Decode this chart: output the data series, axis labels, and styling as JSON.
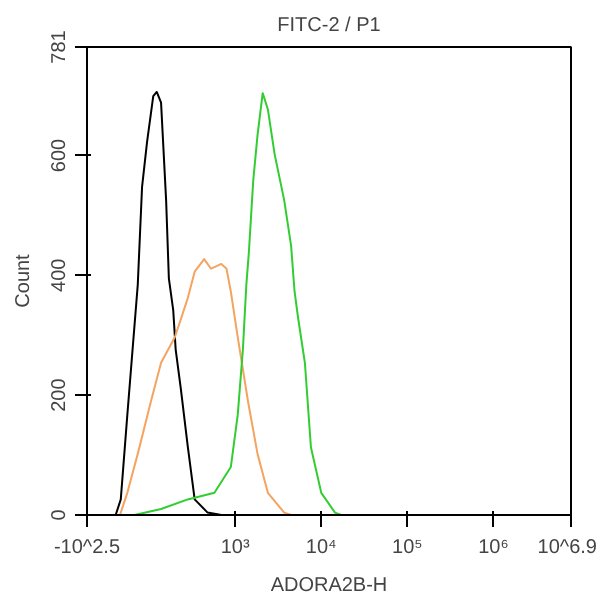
{
  "chart_data": {
    "type": "line",
    "title": "FITC-2 / P1",
    "xlabel": "ADORA2B-H",
    "ylabel": "Count",
    "log": "x",
    "xlim": [
      19.05,
      7943282
    ],
    "ylim": [
      0,
      781
    ],
    "xticks": [
      {
        "value": 19.05,
        "label": "-10^2.5"
      },
      {
        "value": 1000,
        "label": "10³"
      },
      {
        "value": 10000,
        "label": "10⁴"
      },
      {
        "value": 100000,
        "label": "10⁵"
      },
      {
        "value": 1000000,
        "label": "10⁶"
      },
      {
        "value": 7943282,
        "label": "10^6.9"
      }
    ],
    "yticks": [
      0,
      200,
      400,
      600,
      781
    ],
    "grid": false,
    "marker": "none",
    "line_style": "solid",
    "series": [
      {
        "color": "#000000",
        "x": [
          41,
          47,
          56,
          74,
          83,
          95,
          112,
          123,
          138,
          158,
          170,
          191,
          204,
          234,
          282,
          339,
          479,
          692
        ],
        "values": [
          0,
          26,
          167,
          384,
          547,
          623,
          699,
          706,
          688,
          525,
          395,
          342,
          276,
          211,
          114,
          26,
          4,
          0
        ]
      },
      {
        "color": "#f4a460",
        "x": [
          46,
          56,
          74,
          105,
          138,
          200,
          282,
          339,
          437,
          525,
          692,
          794,
          891,
          1072,
          1413,
          1820,
          2399,
          3715,
          4467
        ],
        "values": [
          0,
          37,
          102,
          189,
          254,
          297,
          362,
          406,
          427,
          411,
          419,
          411,
          373,
          297,
          189,
          102,
          37,
          4,
          0
        ]
      },
      {
        "color": "#32cd32",
        "x": [
          68,
          138,
          282,
          575,
          891,
          1072,
          1230,
          1349,
          1445,
          1622,
          1820,
          2089,
          2399,
          2884,
          3715,
          4467,
          4898,
          5370,
          6457,
          7586,
          10000,
          14450,
          16980
        ],
        "values": [
          0,
          10,
          26,
          37,
          80,
          167,
          276,
          384,
          439,
          558,
          634,
          704,
          677,
          601,
          525,
          449,
          373,
          330,
          254,
          113,
          37,
          4,
          0
        ]
      }
    ]
  }
}
